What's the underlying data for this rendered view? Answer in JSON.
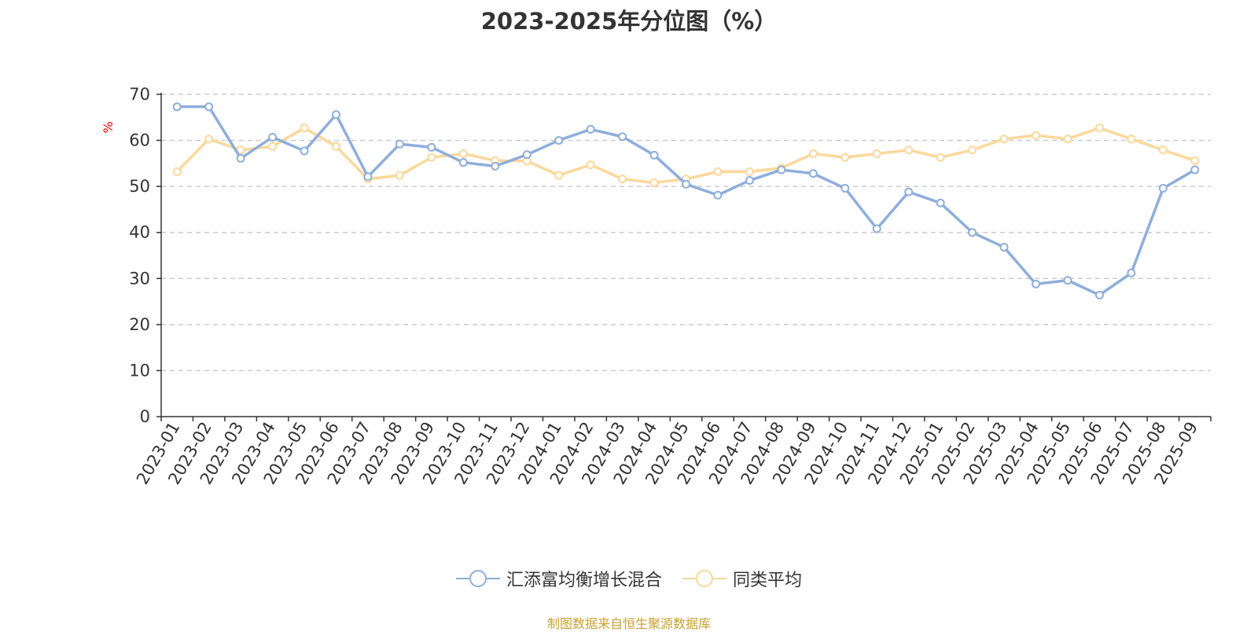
{
  "chart_data": {
    "type": "line",
    "title": "2023-2025年分位图（%）",
    "ylabel": "%",
    "ylim": [
      0,
      70
    ],
    "yticks": [
      0,
      10,
      20,
      30,
      40,
      50,
      60,
      70
    ],
    "grid": true,
    "legend_position": "bottom-center",
    "categories": [
      "2023-01",
      "2023-02",
      "2023-03",
      "2023-04",
      "2023-05",
      "2023-06",
      "2023-07",
      "2023-08",
      "2023-09",
      "2023-10",
      "2023-11",
      "2023-12",
      "2024-01",
      "2024-02",
      "2024-03",
      "2024-04",
      "2024-05",
      "2024-06",
      "2024-07",
      "2024-08",
      "2024-09",
      "2024-10",
      "2024-11",
      "2024-12",
      "2025-01",
      "2025-02",
      "2025-03",
      "2025-04",
      "2025-05",
      "2025-06",
      "2025-07",
      "2025-08",
      "2025-09"
    ],
    "series": [
      {
        "name": "汇添富均衡增长混合",
        "color": "#8eaedb",
        "values": [
          67.3,
          67.3,
          56.1,
          60.7,
          57.7,
          65.6,
          52.1,
          59.2,
          58.5,
          55.2,
          54.4,
          56.9,
          60.0,
          62.4,
          60.8,
          56.8,
          50.5,
          48.1,
          51.3,
          53.6,
          52.8,
          49.6,
          40.8,
          48.8,
          46.4,
          40.0,
          36.8,
          28.8,
          29.6,
          26.4,
          31.2,
          49.6,
          53.6
        ]
      },
      {
        "name": "同类平均",
        "color": "#fbd89b",
        "values": [
          53.2,
          60.3,
          57.9,
          58.7,
          62.7,
          58.7,
          51.6,
          52.4,
          56.3,
          57.1,
          55.6,
          55.5,
          52.4,
          54.7,
          51.6,
          50.8,
          51.6,
          53.2,
          53.2,
          54.0,
          57.1,
          56.3,
          57.1,
          57.9,
          56.3,
          57.9,
          60.3,
          61.1,
          60.3,
          62.7,
          60.3,
          57.9,
          55.6
        ]
      }
    ]
  },
  "source_text": "制图数据来自恒生聚源数据库"
}
